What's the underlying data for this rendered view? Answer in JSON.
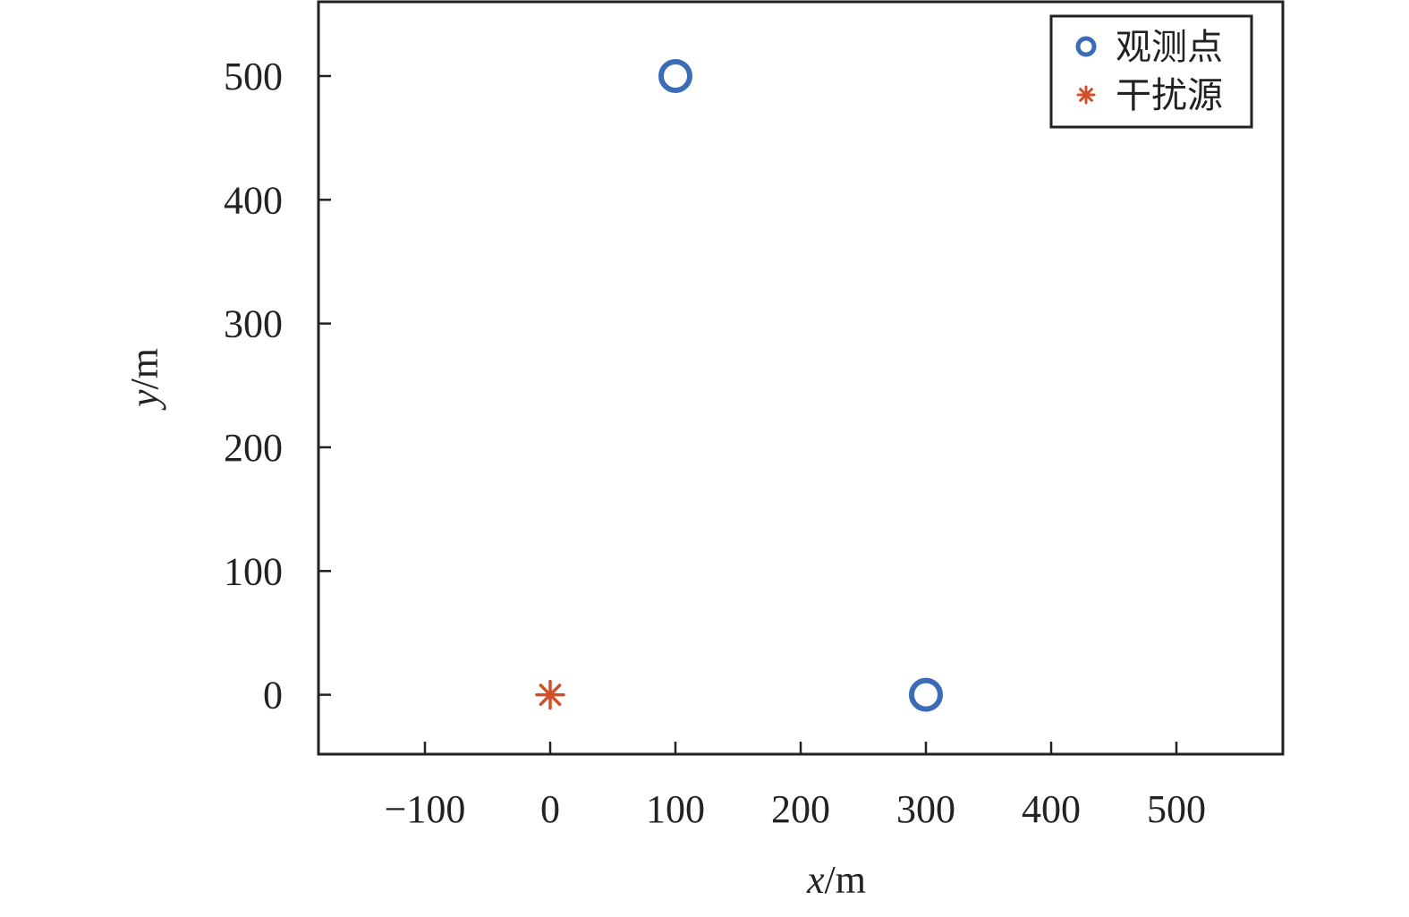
{
  "chart_data": {
    "type": "scatter",
    "title": "",
    "xlabel": {
      "var": "x",
      "unit": "/m"
    },
    "ylabel": {
      "var": "y",
      "unit": "/m"
    },
    "xlim": [
      -185,
      585
    ],
    "ylim": [
      -48,
      560
    ],
    "x_ticks": [
      {
        "value": -100,
        "label": "−100"
      },
      {
        "value": 0,
        "label": "0"
      },
      {
        "value": 100,
        "label": "100"
      },
      {
        "value": 200,
        "label": "200"
      },
      {
        "value": 300,
        "label": "300"
      },
      {
        "value": 400,
        "label": "400"
      },
      {
        "value": 500,
        "label": "500"
      }
    ],
    "y_ticks": [
      {
        "value": 0,
        "label": "0"
      },
      {
        "value": 100,
        "label": "100"
      },
      {
        "value": 200,
        "label": "200"
      },
      {
        "value": 300,
        "label": "300"
      },
      {
        "value": 400,
        "label": "400"
      },
      {
        "value": 500,
        "label": "500"
      }
    ],
    "grid": false,
    "legend_position": "top-right",
    "series": [
      {
        "name": "观测点",
        "marker": "circle",
        "color": "#3a6db5",
        "points": [
          {
            "x": 100,
            "y": 500
          },
          {
            "x": 300,
            "y": 0
          }
        ]
      },
      {
        "name": "干扰源",
        "marker": "asterisk",
        "color": "#d1502a",
        "points": [
          {
            "x": 0,
            "y": 0
          }
        ]
      }
    ]
  }
}
